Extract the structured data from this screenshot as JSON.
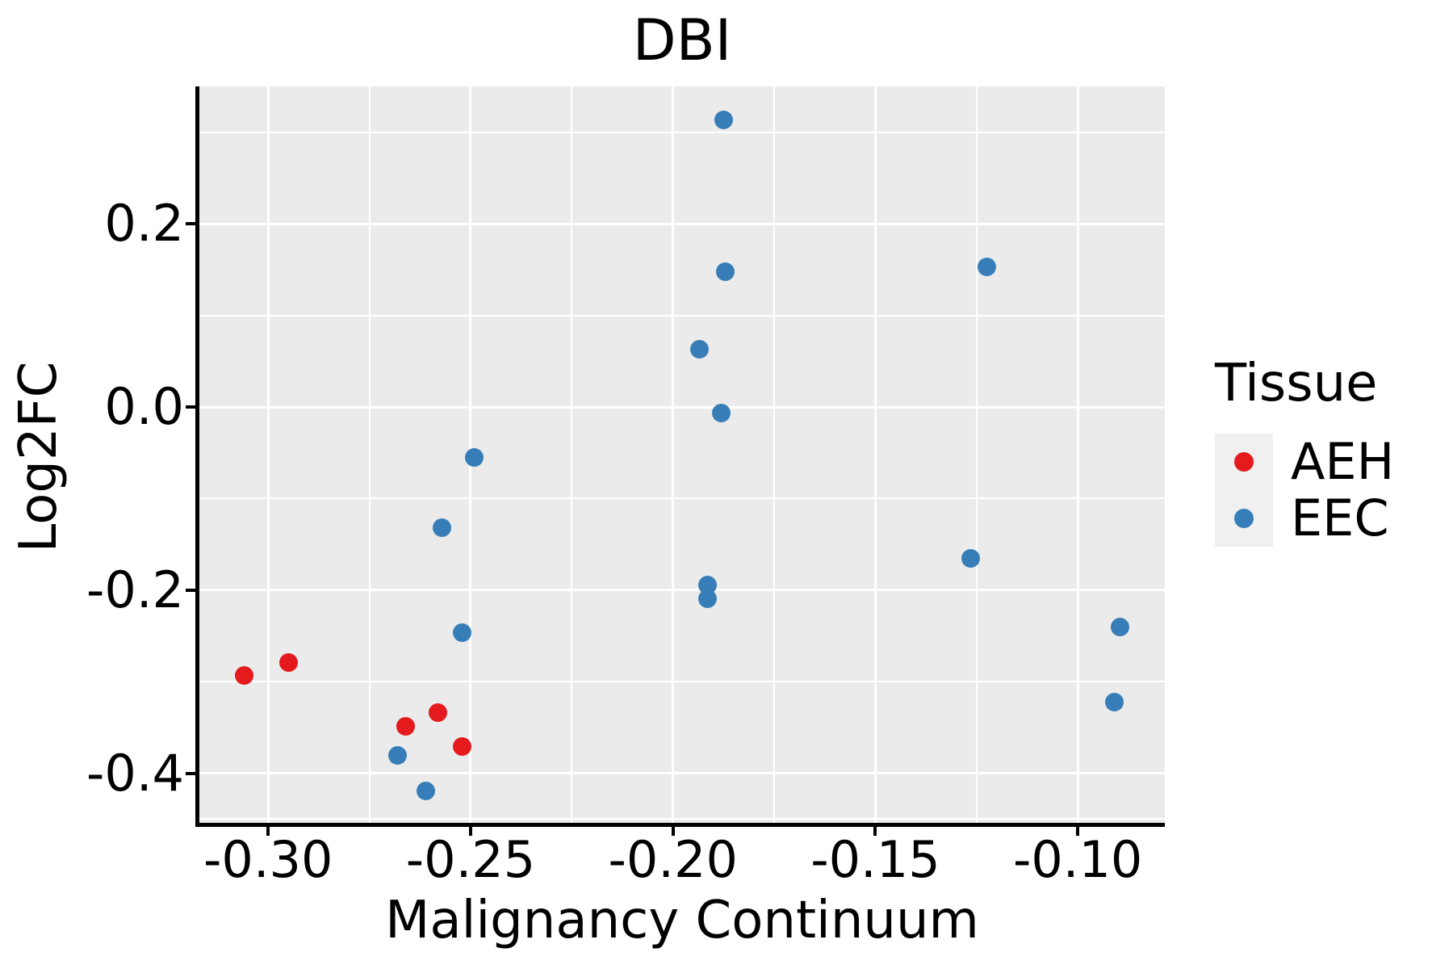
{
  "figure": {
    "title": "DBI"
  },
  "axes": {
    "x_label": "Malignancy Continuum",
    "y_label": "Log2FC",
    "x_tick_labels": [
      "-0.30",
      "-0.25",
      "-0.20",
      "-0.15",
      "-0.10"
    ],
    "y_tick_labels": [
      "0.2",
      "0.0",
      "-0.2",
      "-0.4"
    ]
  },
  "legend": {
    "title": "Tissue",
    "items": [
      {
        "label": "AEH",
        "color": "#e41a1c"
      },
      {
        "label": "EEC",
        "color": "#377eb8"
      }
    ]
  },
  "colors": {
    "panel_background": "#ebebeb",
    "gridline": "#ffffff",
    "axis": "#000000",
    "aeh": "#e41a1c",
    "eec": "#377eb8"
  },
  "chart_data": {
    "type": "scatter",
    "title": "DBI",
    "xlabel": "Malignancy Continuum",
    "ylabel": "Log2FC",
    "xlim": [
      -0.317,
      -0.0785
    ],
    "ylim": [
      -0.454,
      0.35
    ],
    "grid": true,
    "legend_position": "right",
    "x_major_ticks": [
      -0.3,
      -0.25,
      -0.2,
      -0.15,
      -0.1
    ],
    "x_minor_ticks": [
      -0.275,
      -0.225,
      -0.175,
      -0.125
    ],
    "y_major_ticks": [
      0.2,
      0.0,
      -0.2,
      -0.4
    ],
    "y_minor_ticks": [
      0.3,
      0.1,
      -0.1,
      -0.3,
      -0.45
    ],
    "series": [
      {
        "name": "AEH",
        "color": "#e41a1c",
        "points": [
          [
            -0.306,
            -0.293
          ],
          [
            -0.295,
            -0.279
          ],
          [
            -0.266,
            -0.349
          ],
          [
            -0.258,
            -0.334
          ],
          [
            -0.252,
            -0.371
          ]
        ]
      },
      {
        "name": "EEC",
        "color": "#377eb8",
        "points": [
          [
            -0.268,
            -0.38
          ],
          [
            -0.261,
            -0.419
          ],
          [
            -0.257,
            -0.132
          ],
          [
            -0.252,
            -0.246
          ],
          [
            -0.249,
            -0.055
          ],
          [
            -0.1935,
            0.063
          ],
          [
            -0.1875,
            0.313
          ],
          [
            -0.187,
            0.148
          ],
          [
            -0.188,
            -0.007
          ],
          [
            -0.1915,
            -0.1945
          ],
          [
            -0.1915,
            -0.2095
          ],
          [
            -0.1225,
            0.153
          ],
          [
            -0.1265,
            -0.165
          ],
          [
            -0.0895,
            -0.24
          ],
          [
            -0.091,
            -0.322
          ]
        ]
      }
    ]
  }
}
